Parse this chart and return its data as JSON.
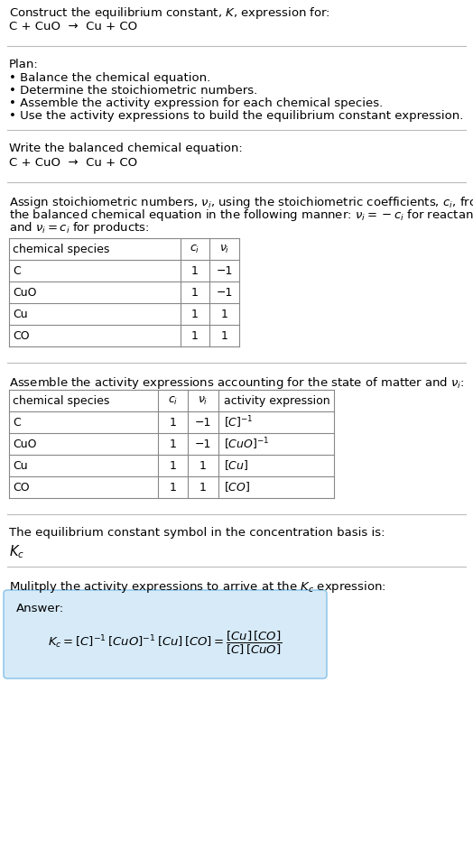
{
  "title_line1": "Construct the equilibrium constant, $K$, expression for:",
  "title_line2": "C + CuO  →  Cu + CO",
  "plan_header": "Plan:",
  "plan_items": [
    "• Balance the chemical equation.",
    "• Determine the stoichiometric numbers.",
    "• Assemble the activity expression for each chemical species.",
    "• Use the activity expressions to build the equilibrium constant expression."
  ],
  "section2_header": "Write the balanced chemical equation:",
  "section2_eq": "C + CuO  →  Cu + CO",
  "section3_header_parts": [
    "Assign stoichiometric numbers, $\\nu_i$, using the stoichiometric coefficients, $c_i$, from",
    "the balanced chemical equation in the following manner: $\\nu_i = -c_i$ for reactants",
    "and $\\nu_i = c_i$ for products:"
  ],
  "table1_headers": [
    "chemical species",
    "$c_i$",
    "$\\nu_i$"
  ],
  "table1_rows": [
    [
      "C",
      "1",
      "−1"
    ],
    [
      "CuO",
      "1",
      "−1"
    ],
    [
      "Cu",
      "1",
      "1"
    ],
    [
      "CO",
      "1",
      "1"
    ]
  ],
  "section4_header": "Assemble the activity expressions accounting for the state of matter and $\\nu_i$:",
  "table2_headers": [
    "chemical species",
    "$c_i$",
    "$\\nu_i$",
    "activity expression"
  ],
  "table2_rows": [
    [
      "C",
      "1",
      "−1",
      "$[C]^{-1}$"
    ],
    [
      "CuO",
      "1",
      "−1",
      "$[CuO]^{-1}$"
    ],
    [
      "Cu",
      "1",
      "1",
      "$[Cu]$"
    ],
    [
      "CO",
      "1",
      "1",
      "$[CO]$"
    ]
  ],
  "section5_text": "The equilibrium constant symbol in the concentration basis is:",
  "section5_symbol": "$K_c$",
  "section6_header": "Mulitply the activity expressions to arrive at the $K_c$ expression:",
  "answer_label": "Answer:",
  "bg_color": "#ffffff",
  "text_color": "#000000",
  "sep_color": "#bbbbbb",
  "table_color": "#888888",
  "answer_box_bg": "#d6eaf8",
  "answer_box_edge": "#85c1e9"
}
